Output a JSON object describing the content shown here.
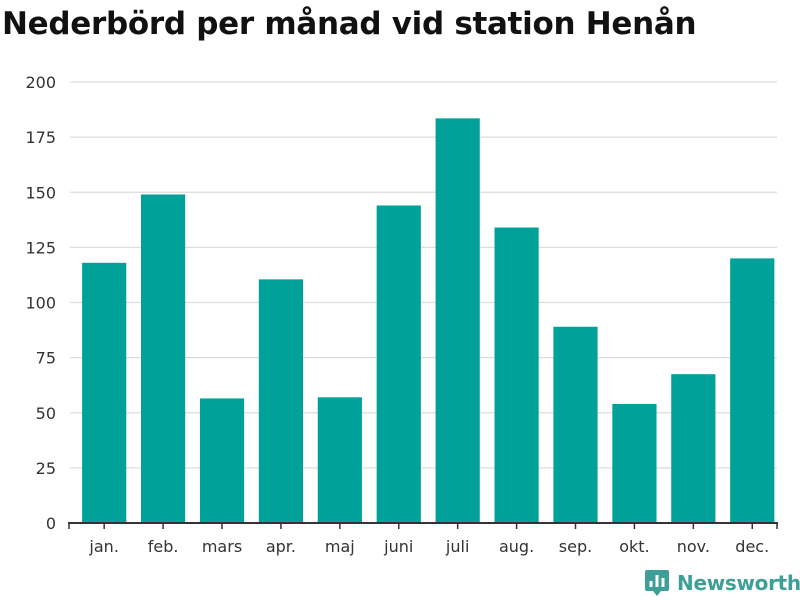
{
  "colors": {
    "bar": "#00a199",
    "grid": "#dddddd",
    "axis": "#333333",
    "brand": "#3d9f97",
    "title": "#111111"
  },
  "brand": {
    "name": "Newsworthy",
    "icon": "bar-chart-speech-bubble-icon"
  },
  "chart_data": {
    "type": "bar",
    "title": "Nederbörd per månad vid station Henån",
    "xlabel": "",
    "ylabel": "",
    "categories": [
      "jan.",
      "feb.",
      "mars",
      "apr.",
      "maj",
      "juni",
      "juli",
      "aug.",
      "sep.",
      "okt.",
      "nov.",
      "dec."
    ],
    "values": [
      118,
      149,
      56.5,
      110.5,
      57,
      144,
      183.5,
      134,
      89,
      54,
      67.5,
      120
    ],
    "ylim": [
      0,
      200
    ],
    "yticks": [
      0,
      25,
      50,
      75,
      100,
      125,
      150,
      175,
      200
    ],
    "grid": true,
    "legend": "none"
  }
}
